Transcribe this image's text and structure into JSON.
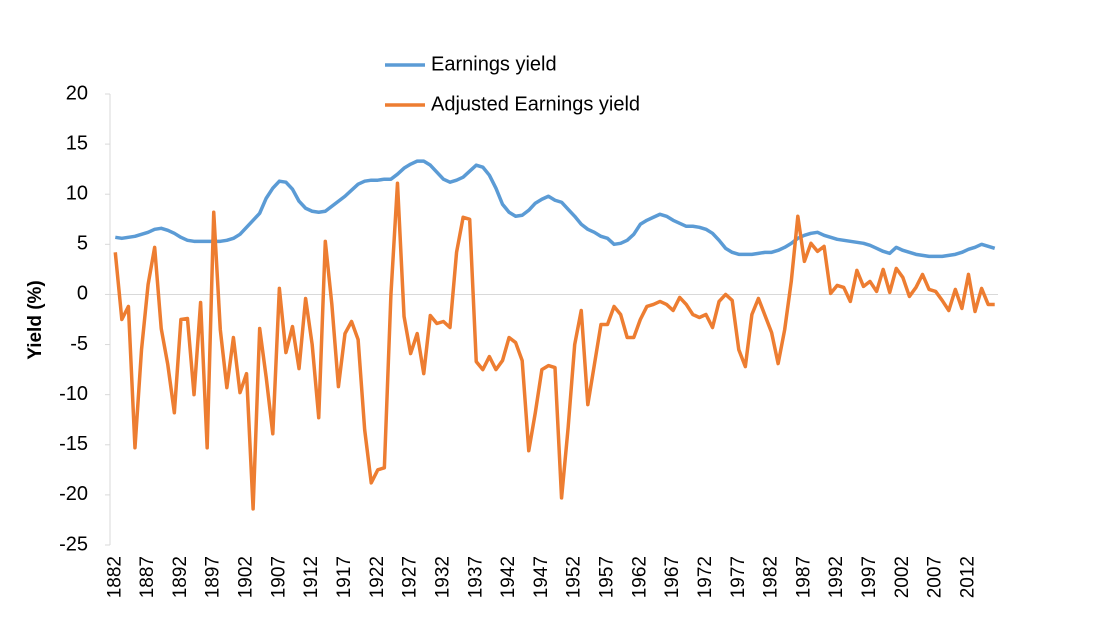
{
  "chart_data": {
    "type": "line",
    "y_label": "Yield (%)",
    "x": [
      1882,
      1883,
      1884,
      1885,
      1886,
      1887,
      1888,
      1889,
      1890,
      1891,
      1892,
      1893,
      1894,
      1895,
      1896,
      1897,
      1898,
      1899,
      1900,
      1901,
      1902,
      1903,
      1904,
      1905,
      1906,
      1907,
      1908,
      1909,
      1910,
      1911,
      1912,
      1913,
      1914,
      1915,
      1916,
      1917,
      1918,
      1919,
      1920,
      1921,
      1922,
      1923,
      1924,
      1925,
      1926,
      1927,
      1928,
      1929,
      1930,
      1931,
      1932,
      1933,
      1934,
      1935,
      1936,
      1937,
      1938,
      1939,
      1940,
      1941,
      1942,
      1943,
      1944,
      1945,
      1946,
      1947,
      1948,
      1949,
      1950,
      1951,
      1952,
      1953,
      1954,
      1955,
      1956,
      1957,
      1958,
      1959,
      1960,
      1961,
      1962,
      1963,
      1964,
      1965,
      1966,
      1967,
      1968,
      1969,
      1970,
      1971,
      1972,
      1973,
      1974,
      1975,
      1976,
      1977,
      1978,
      1979,
      1980,
      1981,
      1982,
      1983,
      1984,
      1985,
      1986,
      1987,
      1988,
      1989,
      1990,
      1991,
      1992,
      1993,
      1994,
      1995,
      1996,
      1997,
      1998,
      1999,
      2000,
      2001,
      2002,
      2003,
      2004,
      2005,
      2006,
      2007,
      2008,
      2009,
      2010,
      2011,
      2012,
      2013,
      2014,
      2015,
      2016
    ],
    "series": [
      {
        "name": "Earnings yield",
        "color": "#5b9bd5",
        "values": [
          5.7,
          5.6,
          5.7,
          5.8,
          6.0,
          6.2,
          6.5,
          6.6,
          6.4,
          6.1,
          5.7,
          5.4,
          5.3,
          5.3,
          5.3,
          5.3,
          5.3,
          5.4,
          5.6,
          6.0,
          6.7,
          7.4,
          8.1,
          9.6,
          10.6,
          11.3,
          11.2,
          10.5,
          9.3,
          8.6,
          8.3,
          8.2,
          8.3,
          8.8,
          9.3,
          9.8,
          10.4,
          11.0,
          11.3,
          11.4,
          11.4,
          11.5,
          11.5,
          12.0,
          12.6,
          13.0,
          13.3,
          13.3,
          12.9,
          12.2,
          11.5,
          11.2,
          11.4,
          11.7,
          12.3,
          12.9,
          12.7,
          11.9,
          10.6,
          9.0,
          8.2,
          7.8,
          7.9,
          8.4,
          9.1,
          9.5,
          9.8,
          9.4,
          9.2,
          8.5,
          7.8,
          7.0,
          6.5,
          6.2,
          5.8,
          5.6,
          5.0,
          5.1,
          5.4,
          6.0,
          7.0,
          7.4,
          7.7,
          8.0,
          7.8,
          7.4,
          7.1,
          6.8,
          6.8,
          6.7,
          6.5,
          6.1,
          5.4,
          4.6,
          4.2,
          4.0,
          4.0,
          4.0,
          4.1,
          4.2,
          4.2,
          4.4,
          4.7,
          5.1,
          5.6,
          5.9,
          6.1,
          6.2,
          5.9,
          5.7,
          5.5,
          5.4,
          5.3,
          5.2,
          5.1,
          4.9,
          4.6,
          4.3,
          4.1,
          4.7,
          4.4,
          4.2,
          4.0,
          3.9,
          3.8,
          3.8,
          3.8,
          3.9,
          4.0,
          4.2,
          4.5,
          4.7,
          5.0,
          4.8,
          4.6
        ]
      },
      {
        "name": "Adjusted Earnings yield",
        "color": "#ed7d31",
        "values": [
          4.2,
          -2.5,
          -1.2,
          -15.3,
          -5.5,
          1.0,
          4.7,
          -3.4,
          -7.0,
          -11.8,
          -2.5,
          -2.4,
          -10.0,
          -0.8,
          -15.3,
          8.2,
          -3.5,
          -9.3,
          -4.3,
          -9.8,
          -7.9,
          -21.4,
          -3.4,
          -8.3,
          -13.9,
          0.6,
          -5.8,
          -3.2,
          -7.4,
          -0.4,
          -5.0,
          -12.3,
          5.3,
          -1.0,
          -9.2,
          -3.9,
          -2.7,
          -4.5,
          -13.5,
          -18.8,
          -17.5,
          -17.3,
          0.0,
          11.1,
          -2.2,
          -5.9,
          -3.9,
          -7.9,
          -2.1,
          -2.9,
          -2.7,
          -3.3,
          4.2,
          7.7,
          7.5,
          -6.7,
          -7.5,
          -6.2,
          -7.5,
          -6.6,
          -4.3,
          -4.8,
          -6.6,
          -15.6,
          -11.8,
          -7.5,
          -7.1,
          -7.3,
          -20.3,
          -13.3,
          -5.0,
          -1.6,
          -11.0,
          -7.0,
          -3.0,
          -3.0,
          -1.2,
          -2.0,
          -4.3,
          -4.3,
          -2.5,
          -1.2,
          -1.0,
          -0.7,
          -1.0,
          -1.6,
          -0.3,
          -1.0,
          -2.0,
          -2.3,
          -2.0,
          -3.3,
          -0.7,
          0.0,
          -0.6,
          -5.5,
          -7.2,
          -2.0,
          -0.4,
          -2.1,
          -3.8,
          -6.9,
          -3.5,
          1.3,
          7.8,
          3.3,
          5.1,
          4.3,
          4.8,
          0.1,
          0.9,
          0.7,
          -0.7,
          2.4,
          0.8,
          1.3,
          0.3,
          2.5,
          0.2,
          2.6,
          1.7,
          -0.2,
          0.7,
          2.0,
          0.5,
          0.3,
          -0.6,
          -1.6,
          0.5,
          -1.4,
          2.0,
          -1.7,
          0.6,
          -1.0,
          -1.0
        ]
      }
    ],
    "xlim": [
      1881.5,
      2016.5
    ],
    "xticks": [
      1882,
      1887,
      1892,
      1897,
      1902,
      1907,
      1912,
      1917,
      1922,
      1927,
      1932,
      1937,
      1942,
      1947,
      1952,
      1957,
      1962,
      1967,
      1972,
      1977,
      1982,
      1987,
      1992,
      1997,
      2002,
      2007,
      2012
    ],
    "ylim": [
      -25,
      20
    ],
    "yticks": [
      -25,
      -20,
      -15,
      -10,
      -5,
      0,
      5,
      10,
      15,
      20
    ],
    "grid": false,
    "legend": "top"
  }
}
